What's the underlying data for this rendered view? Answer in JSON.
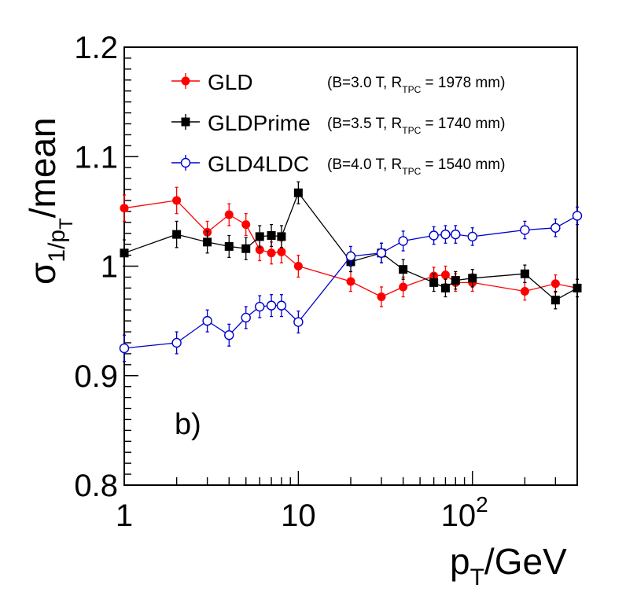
{
  "chart_data": {
    "type": "scatter",
    "xscale": "log",
    "xlim": [
      1,
      400
    ],
    "ylim": [
      0.8,
      1.2
    ],
    "xlabel": {
      "base": "p",
      "sub": "T",
      "rest": "/GeV"
    },
    "ylabel": {
      "sym": "σ",
      "sub1": "1/p",
      "sub2": "T",
      "rest": "/mean"
    },
    "yticks": [
      {
        "value": 0.8,
        "label": "0.8"
      },
      {
        "value": 0.9,
        "label": "0.9"
      },
      {
        "value": 1.0,
        "label": "1"
      },
      {
        "value": 1.1,
        "label": "1.1"
      },
      {
        "value": 1.2,
        "label": "1.2"
      }
    ],
    "xticks": [
      {
        "value": 1,
        "label": "1"
      },
      {
        "value": 10,
        "label": "10"
      },
      {
        "value": 100,
        "label": "10",
        "sup": "2"
      }
    ],
    "annotation": "b)",
    "legend_position": "top-right",
    "series": [
      {
        "name": "GLD",
        "params": {
          "prefix": "(B=3.0 T, R",
          "sub": "TPC",
          "suffix": "= 1978 mm)"
        },
        "color": "#ff0000",
        "marker": "filled-circle",
        "x": [
          1,
          2,
          3,
          4,
          5,
          6,
          7,
          8,
          10,
          20,
          30,
          40,
          60,
          70,
          80,
          100,
          200,
          300,
          400
        ],
        "y": [
          1.053,
          1.06,
          1.031,
          1.047,
          1.038,
          1.015,
          1.012,
          1.013,
          1.0,
          0.986,
          0.972,
          0.981,
          0.991,
          0.992,
          0.985,
          0.985,
          0.977,
          0.984,
          0.98
        ],
        "err": [
          0.012,
          0.012,
          0.01,
          0.01,
          0.01,
          0.01,
          0.01,
          0.01,
          0.01,
          0.009,
          0.009,
          0.009,
          0.008,
          0.008,
          0.008,
          0.008,
          0.008,
          0.008,
          0.008
        ]
      },
      {
        "name": "GLDPrime",
        "params": {
          "prefix": "(B=3.5 T, R",
          "sub": "TPC",
          "suffix": "= 1740 mm)"
        },
        "color": "#000000",
        "marker": "filled-square",
        "x": [
          1,
          2,
          3,
          4,
          5,
          6,
          7,
          8,
          10,
          20,
          30,
          40,
          60,
          70,
          80,
          100,
          200,
          300,
          400
        ],
        "y": [
          1.012,
          1.029,
          1.022,
          1.018,
          1.016,
          1.027,
          1.028,
          1.027,
          1.067,
          1.004,
          1.012,
          0.997,
          0.985,
          0.98,
          0.987,
          0.989,
          0.993,
          0.969,
          0.98
        ],
        "err": [
          0.012,
          0.012,
          0.01,
          0.01,
          0.01,
          0.01,
          0.01,
          0.01,
          0.01,
          0.009,
          0.009,
          0.009,
          0.008,
          0.008,
          0.008,
          0.008,
          0.008,
          0.008,
          0.008
        ]
      },
      {
        "name": "GLD4LDC",
        "params": {
          "prefix": "(B=4.0 T, R",
          "sub": "TPC",
          "suffix": "= 1540 mm)"
        },
        "color": "#0000cc",
        "marker": "open-circle",
        "x": [
          1,
          2,
          3,
          4,
          5,
          6,
          7,
          8,
          10,
          20,
          30,
          40,
          60,
          70,
          80,
          100,
          200,
          300,
          400
        ],
        "y": [
          0.925,
          0.93,
          0.95,
          0.937,
          0.953,
          0.963,
          0.964,
          0.964,
          0.949,
          1.009,
          1.012,
          1.023,
          1.028,
          1.029,
          1.029,
          1.027,
          1.033,
          1.035,
          1.046
        ],
        "err": [
          0.012,
          0.01,
          0.01,
          0.01,
          0.01,
          0.01,
          0.01,
          0.01,
          0.01,
          0.009,
          0.009,
          0.009,
          0.008,
          0.008,
          0.008,
          0.008,
          0.008,
          0.008,
          0.008
        ]
      }
    ]
  }
}
